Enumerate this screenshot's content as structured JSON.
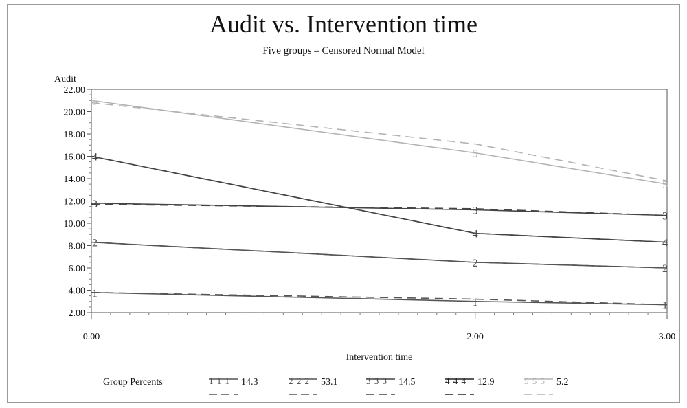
{
  "chart_data": {
    "type": "line",
    "title": "Audit vs. Intervention time",
    "subtitle": "Five groups – Censored Normal Model",
    "ylabel": "Audit",
    "xlabel": "Intervention time",
    "x": [
      0,
      2,
      3
    ],
    "x_ticks": [
      "0.00",
      "2.00",
      "3.00"
    ],
    "ylim": [
      2,
      22
    ],
    "y_ticks": [
      "2.00",
      "4.00",
      "6.00",
      "8.00",
      "10.00",
      "12.00",
      "14.00",
      "16.00",
      "18.00",
      "20.00",
      "22.00"
    ],
    "series": [
      {
        "label": "1",
        "color": "#555555",
        "observed": [
          3.8,
          3.0,
          2.7
        ],
        "predicted": [
          3.8,
          3.2,
          2.7
        ]
      },
      {
        "label": "2",
        "color": "#555555",
        "observed": [
          8.3,
          6.5,
          6.0
        ],
        "predicted": [
          8.3,
          6.5,
          6.0
        ]
      },
      {
        "label": "3",
        "color": "#444444",
        "observed": [
          11.8,
          11.2,
          10.7
        ],
        "predicted": [
          11.7,
          11.3,
          10.7
        ]
      },
      {
        "label": "4",
        "color": "#444444",
        "observed": [
          16.0,
          9.1,
          8.3
        ],
        "predicted": [
          16.0,
          9.1,
          8.3
        ]
      },
      {
        "label": "5",
        "color": "#b3b3b3",
        "observed": [
          21.0,
          16.3,
          13.5
        ],
        "predicted": [
          20.8,
          17.1,
          13.8
        ]
      }
    ],
    "legend": {
      "title": "Group Percents",
      "entries": [
        {
          "marker": "1 1 1",
          "value": "14.3",
          "color": "#555555"
        },
        {
          "marker": "2 2 2",
          "value": "53.1",
          "color": "#555555"
        },
        {
          "marker": "3 3 3",
          "value": "14.5",
          "color": "#444444"
        },
        {
          "marker": "4 4 4",
          "value": "12.9",
          "color": "#222222"
        },
        {
          "marker": "5 5 5",
          "value": "5.2",
          "color": "#b3b3b3"
        }
      ]
    }
  }
}
